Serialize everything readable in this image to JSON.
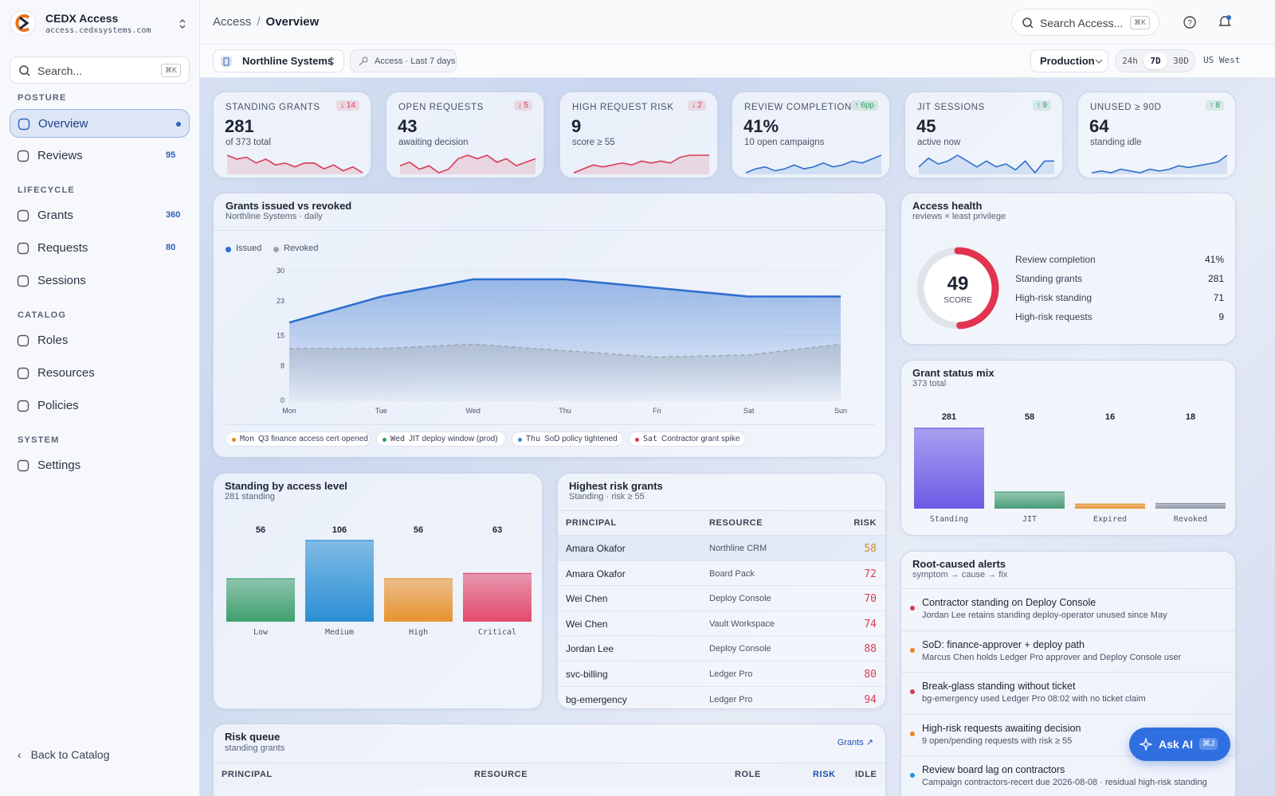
{
  "sidebar": {
    "brand": "CEDX Access",
    "domain": "access.cedxsystems.com",
    "search": "Search...",
    "search_kbd": "⌘K",
    "sections": [
      {
        "title": "POSTURE",
        "items": [
          {
            "label": "Overview",
            "active": true
          },
          {
            "label": "Reviews",
            "badge": 95
          }
        ]
      },
      {
        "title": "LIFECYCLE",
        "items": [
          {
            "label": "Grants",
            "badge": 360
          },
          {
            "label": "Requests",
            "badge": 80
          },
          {
            "label": "Sessions"
          }
        ]
      },
      {
        "title": "CATALOG",
        "items": [
          {
            "label": "Roles"
          },
          {
            "label": "Resources"
          },
          {
            "label": "Policies"
          }
        ]
      },
      {
        "title": "SYSTEM",
        "items": [
          {
            "label": "Settings"
          }
        ]
      }
    ],
    "back": "Back to Catalog"
  },
  "topbar": {
    "breadcrumb": [
      "Access",
      "Overview"
    ],
    "search": "Search Access...",
    "search_kbd": "⌘K"
  },
  "filters": {
    "org": "Northline Systems",
    "scope": "Access · Last 7 days",
    "env": "Production",
    "ranges": [
      "24h",
      "7D",
      "30D"
    ],
    "active_range": 1,
    "region": "US West"
  },
  "kpis": [
    {
      "label": "STANDING GRANTS",
      "value": 281,
      "sub": "of 373 total",
      "delta": "↓ 14",
      "color": "#d93a55",
      "spark": [
        7,
        6,
        6.5,
        5,
        6,
        4.5,
        5,
        4,
        5,
        5,
        3.5,
        4.5,
        3,
        4,
        2.5
      ]
    },
    {
      "label": "OPEN REQUESTS",
      "value": 43,
      "sub": "awaiting decision",
      "delta": "↓ 5",
      "color": "#d93a55",
      "spark": [
        4,
        5,
        3,
        4,
        2,
        3,
        6,
        7,
        6,
        7,
        5,
        6,
        4,
        5,
        6
      ]
    },
    {
      "label": "HIGH REQUEST RISK",
      "value": 9,
      "sub": "score ≥ 55",
      "delta": "↓ 2",
      "color": "#d93a55",
      "spark": [
        2,
        3,
        4,
        3.5,
        4,
        4.5,
        4,
        5,
        4.5,
        5,
        4.5,
        6,
        6.5,
        6.5,
        6.5
      ]
    },
    {
      "label": "REVIEW COMPLETION",
      "value": "41%",
      "sub": "10 open campaigns",
      "delta": "↑ 6pp",
      "color": "#2f6fce",
      "delta_color": "#2f9a62",
      "spark": [
        2,
        3,
        3.5,
        2.5,
        3,
        4,
        3,
        3.5,
        4.5,
        3.5,
        4,
        5,
        4.5,
        5.5,
        6.5
      ]
    },
    {
      "label": "JIT SESSIONS",
      "value": 45,
      "sub": "active now",
      "delta": "↑ 9",
      "color": "#2f6fce",
      "delta_color": "#2f9a62",
      "spark": [
        3,
        6,
        4,
        5,
        7,
        5,
        3,
        5,
        3,
        4,
        2,
        5,
        1,
        5,
        5
      ]
    },
    {
      "label": "UNUSED ≥ 90D",
      "value": 64,
      "sub": "standing idle",
      "delta": "↑ 8",
      "color": "#2f6fce",
      "delta_color": "#2f9a62",
      "spark": [
        2,
        2.5,
        2,
        3,
        2.5,
        2,
        3,
        2.5,
        3,
        4,
        3.5,
        4,
        4.5,
        5,
        7
      ]
    }
  ],
  "grants_chart": {
    "type": "line",
    "title": "Grants issued vs revoked",
    "subtitle": "Northline Systems · daily",
    "categories": [
      "Mon",
      "Tue",
      "Wed",
      "Thu",
      "Fri",
      "Sat",
      "Sun"
    ],
    "series": [
      {
        "name": "Issued",
        "color": "#2f6fce",
        "values": [
          18,
          24,
          28,
          28,
          26,
          24,
          24
        ]
      },
      {
        "name": "Revoked",
        "color": "#9aa3b2",
        "dashed": true,
        "values": [
          12,
          12,
          13,
          11.5,
          10,
          10.5,
          13
        ]
      }
    ],
    "ylim": [
      0,
      30
    ],
    "yticks": [
      0,
      8,
      15,
      23,
      30
    ],
    "annotations": [
      {
        "day": "Mon",
        "text": "Q3 finance access cert opened",
        "color": "#e8871e"
      },
      {
        "day": "Wed",
        "text": "JIT deploy window (prod)",
        "color": "#2f9a62"
      },
      {
        "day": "Thu",
        "text": "SoD policy tightened",
        "color": "#2a8fd4"
      },
      {
        "day": "Sat",
        "text": "Contractor grant spike",
        "color": "#d93a55"
      }
    ]
  },
  "access_health": {
    "title": "Access health",
    "subtitle": "reviews × least privilege",
    "score": 49,
    "score_max": 100,
    "score_label": "SCORE",
    "color": "#e2344f",
    "rows": [
      {
        "label": "Review completion",
        "value": "41%"
      },
      {
        "label": "Standing grants",
        "value": 281
      },
      {
        "label": "High-risk standing",
        "value": 71
      },
      {
        "label": "High-risk requests",
        "value": 9
      }
    ]
  },
  "grant_mix": {
    "type": "bar",
    "title": "Grant status mix",
    "subtitle": "373 total",
    "categories": [
      "Standing",
      "JIT",
      "Expired",
      "Revoked"
    ],
    "values": [
      281,
      58,
      16,
      18
    ],
    "colors": [
      "#6b5be6",
      "#4a9e78",
      "#e8932f",
      "#8f97a8"
    ]
  },
  "standing_level": {
    "type": "bar",
    "title": "Standing by access level",
    "subtitle": "281 standing",
    "categories": [
      "Low",
      "Medium",
      "High",
      "Critical"
    ],
    "values": [
      56,
      106,
      56,
      63
    ],
    "colors": [
      "#3f9f6e",
      "#2a8fd4",
      "#e8932f",
      "#e24a6e"
    ]
  },
  "risk_grants": {
    "title": "Highest risk grants",
    "subtitle": "Standing · risk ≥ 55",
    "columns": [
      "PRINCIPAL",
      "RESOURCE",
      "RISK"
    ],
    "rows": [
      [
        "Amara Okafor",
        "Northline CRM",
        58
      ],
      [
        "Amara Okafor",
        "Board Pack",
        72
      ],
      [
        "Wei Chen",
        "Deploy Console",
        70
      ],
      [
        "Wei Chen",
        "Vault Workspace",
        74
      ],
      [
        "Jordan Lee",
        "Deploy Console",
        88
      ],
      [
        "svc-billing",
        "Ledger Pro",
        80
      ],
      [
        "bg-emergency",
        "Ledger Pro",
        94
      ]
    ]
  },
  "alerts": {
    "title": "Root-caused alerts",
    "subtitle": "symptom → cause → fix",
    "items": [
      {
        "title": "Contractor standing on Deploy Console",
        "detail": "Jordan Lee retains standing deploy-operator unused since May",
        "color": "#d93a55"
      },
      {
        "title": "SoD: finance-approver + deploy path",
        "detail": "Marcus Chen holds Ledger Pro approver and Deploy Console user",
        "color": "#e8871e"
      },
      {
        "title": "Break-glass standing without ticket",
        "detail": "bg-emergency used Ledger Pro 08:02 with no ticket claim",
        "color": "#d93a55"
      },
      {
        "title": "High-risk requests awaiting decision",
        "detail": "9 open/pending requests with risk ≥ 55",
        "color": "#e8871e"
      },
      {
        "title": "Review board lag on contractors",
        "detail": "Campaign contractors-recert due 2026-08-08 · residual high-risk standing",
        "color": "#2a8fd4"
      }
    ]
  },
  "risk_queue": {
    "title": "Risk queue",
    "subtitle": "standing grants",
    "link": "Grants ↗",
    "columns": [
      "PRINCIPAL",
      "RESOURCE",
      "ROLE",
      "RISK",
      "IDLE"
    ]
  },
  "ask_ai": {
    "label": "Ask AI",
    "kbd": "⌘J"
  }
}
